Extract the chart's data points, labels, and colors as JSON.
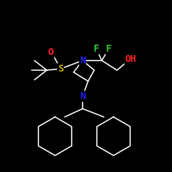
{
  "bg_color": "#000000",
  "bond_color": "#ffffff",
  "bond_width": 1.2,
  "atom_colors": {
    "O": "#ff2222",
    "S": "#ccaa00",
    "N": "#2222ff",
    "F": "#33cc33",
    "OH": "#ff2222",
    "C": "#ffffff"
  },
  "font_size": 9,
  "fig_size": [
    2.5,
    2.5
  ],
  "dpi": 100
}
